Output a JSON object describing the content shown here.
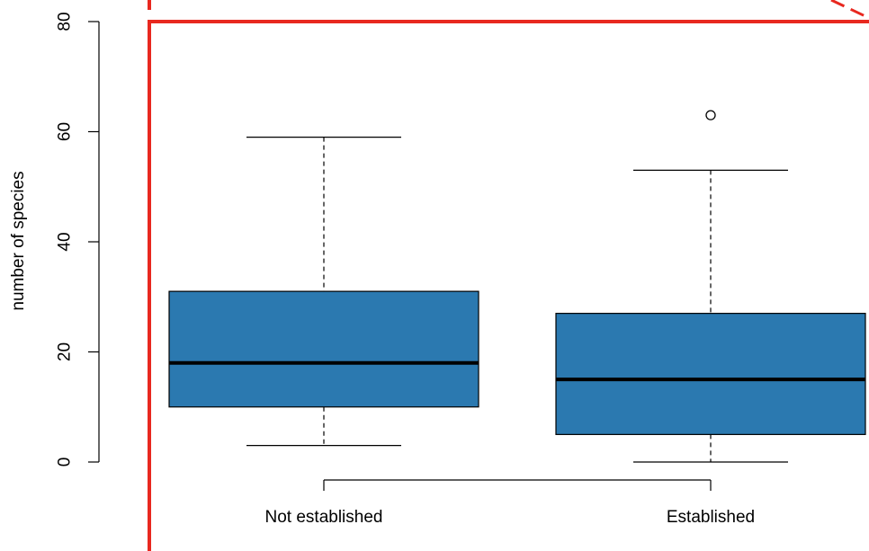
{
  "chart_data": {
    "type": "box",
    "title": "",
    "xlabel": "",
    "ylabel": "number of species",
    "ylim": [
      0,
      80
    ],
    "yticks": [
      0,
      20,
      40,
      60,
      80
    ],
    "categories": [
      "Not established",
      "Established"
    ],
    "boxes": [
      {
        "category": "Not established",
        "min": 3,
        "q1": 10,
        "median": 18,
        "q3": 31,
        "max": 59,
        "outliers": []
      },
      {
        "category": "Established",
        "min": 0,
        "q1": 5,
        "median": 15,
        "q3": 27,
        "max": 53,
        "outliers": [
          63
        ]
      }
    ],
    "grid": false,
    "legend": "none"
  },
  "colors": {
    "box_fill": "#2b79b0",
    "stroke": "#000000",
    "highlight": "#e8281f"
  }
}
